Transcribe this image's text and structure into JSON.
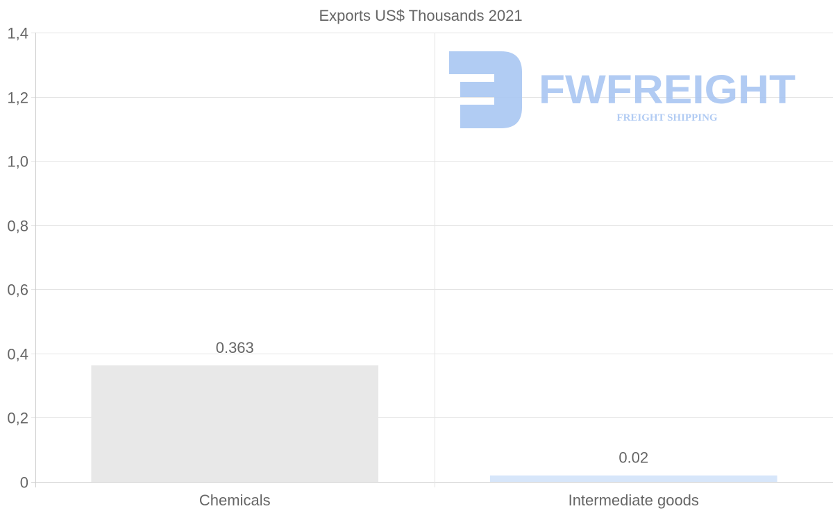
{
  "chart_data": {
    "type": "bar",
    "title": "Exports US$ Thousands 2021",
    "categories": [
      "Chemicals",
      "Intermediate goods"
    ],
    "values": [
      0.363,
      0.02
    ],
    "data_labels": [
      "0.363",
      "0.02"
    ],
    "bar_colors": [
      "#e8e8e8",
      "#d7e6fa"
    ],
    "xlabel": "",
    "ylabel": "",
    "ylim": [
      0,
      1.4
    ],
    "yticks": [
      0,
      0.2,
      0.4,
      0.6,
      0.8,
      1.0,
      1.2,
      1.4
    ],
    "ytick_labels": [
      "0",
      "0,2",
      "0,4",
      "0,6",
      "0,8",
      "1,0",
      "1,2",
      "1,4"
    ],
    "grid": true,
    "legend": "none"
  },
  "watermark": {
    "brand": "FWFREIGHT",
    "tagline": "FREIGHT SHIPPING",
    "color": "#a9c6f2"
  }
}
